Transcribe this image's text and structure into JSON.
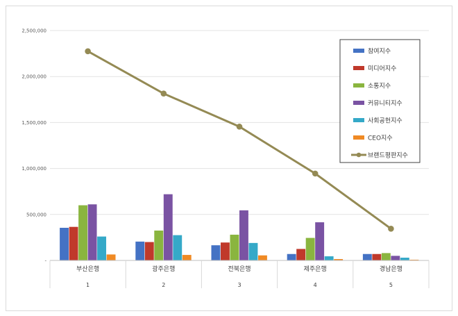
{
  "chart_data": {
    "type": "bar",
    "categories": [
      "부산은행",
      "광주은행",
      "전북은행",
      "제주은행",
      "경남은행"
    ],
    "category_index": [
      "1",
      "2",
      "3",
      "4",
      "5"
    ],
    "ylim": [
      0,
      2500000
    ],
    "yticks": [
      0,
      500000,
      1000000,
      1500000,
      2000000,
      2500000
    ],
    "ytick_labels": [
      "-",
      "500,000",
      "1,000,000",
      "1,500,000",
      "2,000,000",
      "2,500,000"
    ],
    "grid": true,
    "legend_position": "top-right",
    "series": [
      {
        "name": "참여지수",
        "type": "bar",
        "color": "#4472c4",
        "values": [
          355000,
          205000,
          165000,
          70000,
          70000
        ]
      },
      {
        "name": "미디어지수",
        "type": "bar",
        "color": "#c0392b",
        "values": [
          365000,
          200000,
          195000,
          125000,
          70000
        ]
      },
      {
        "name": "소통지수",
        "type": "bar",
        "color": "#8ab53f",
        "values": [
          600000,
          325000,
          280000,
          245000,
          80000
        ]
      },
      {
        "name": "커뮤니티지수",
        "type": "bar",
        "color": "#7a53a3",
        "values": [
          610000,
          720000,
          545000,
          415000,
          50000
        ]
      },
      {
        "name": "사회공헌지수",
        "type": "bar",
        "color": "#35a9c8",
        "values": [
          260000,
          275000,
          190000,
          45000,
          30000
        ]
      },
      {
        "name": "CEO지수",
        "type": "bar",
        "color": "#f08a24",
        "values": [
          65000,
          60000,
          55000,
          15000,
          8000
        ]
      },
      {
        "name": "브랜드평판지수",
        "type": "line",
        "color": "#948a54",
        "values": [
          2275000,
          1815000,
          1455000,
          945000,
          345000
        ]
      }
    ]
  }
}
